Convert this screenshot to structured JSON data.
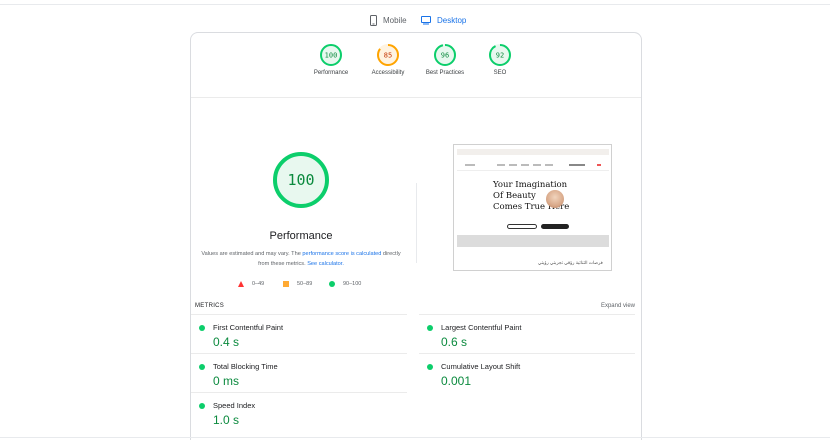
{
  "tabs": [
    {
      "label": "Mobile",
      "icon": "mobile-phone-icon",
      "active": false
    },
    {
      "label": "Desktop",
      "icon": "desktop-monitor-icon",
      "active": true
    }
  ],
  "colors": {
    "pass": "#0cce6b",
    "average": "#ffa400",
    "fail": "#ff3333",
    "accent": "#1a73e8"
  },
  "categories": [
    {
      "label": "Performance",
      "score": "100",
      "level": 1.0,
      "color": "#0cce6b"
    },
    {
      "label": "Accessibility",
      "score": "85",
      "level": 0.85,
      "color": "#ffa400"
    },
    {
      "label": "Best Practices",
      "score": "96",
      "level": 0.96,
      "color": "#0cce6b"
    },
    {
      "label": "SEO",
      "score": "92",
      "level": 0.92,
      "color": "#0cce6b"
    }
  ],
  "performance": {
    "score": "100",
    "title": "Performance",
    "note_prefix": "Values are estimated and may vary. The ",
    "note_link1": "performance score is calculated",
    "note_middle": " directly from these metrics. ",
    "note_link2": "See calculator."
  },
  "legend": [
    {
      "range": "0–49",
      "shape": "triangle",
      "color": "#ff3333"
    },
    {
      "range": "50–89",
      "shape": "square",
      "color": "#ffaa33"
    },
    {
      "range": "90–100",
      "shape": "circle",
      "color": "#0cce6b"
    }
  ],
  "screenshot": {
    "headline_line1": "Your Imagination",
    "headline_line2": "Of Beauty",
    "headline_line3": "Comes True Here",
    "footer_text": "فرصات الثنائية رؤقي تجربتي رؤيتي"
  },
  "metrics": {
    "heading": "METRICS",
    "expand_label": "Expand view",
    "fcp": {
      "name": "First Contentful Paint",
      "value": "0.4 s"
    },
    "lcp": {
      "name": "Largest Contentful Paint",
      "value": "0.6 s"
    },
    "tbt": {
      "name": "Total Blocking Time",
      "value": "0 ms"
    },
    "cls": {
      "name": "Cumulative Layout Shift",
      "value": "0.001"
    },
    "si": {
      "name": "Speed Index",
      "value": "1.0 s"
    }
  }
}
